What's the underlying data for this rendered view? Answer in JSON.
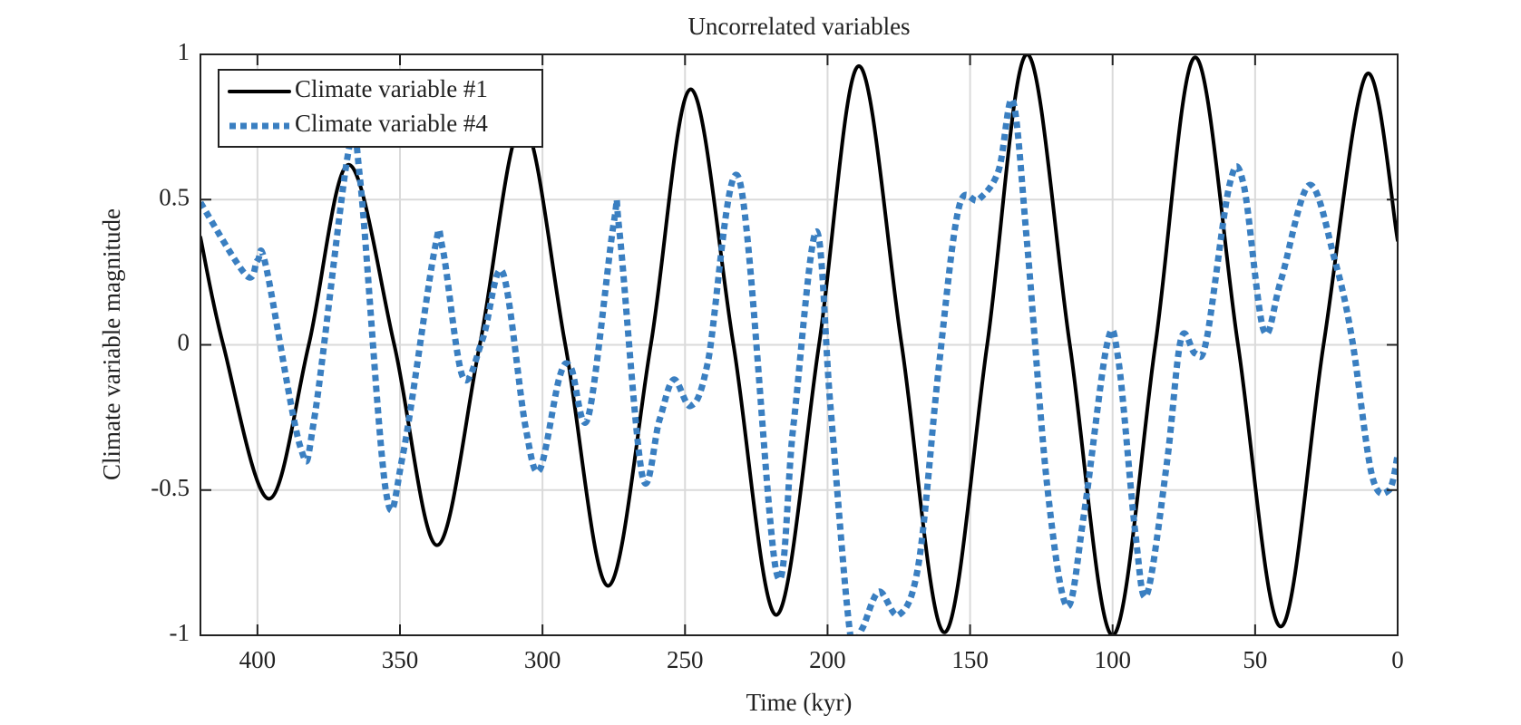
{
  "chart_data": {
    "type": "line",
    "title": "Uncorrelated variables",
    "xlabel": "Time (kyr)",
    "ylabel": "Climate variable magnitude",
    "xlim": [
      420,
      0
    ],
    "xticks": [
      400,
      350,
      300,
      250,
      200,
      150,
      100,
      50,
      0
    ],
    "ylim": [
      -1,
      1
    ],
    "yticks": [
      -1,
      -0.5,
      0,
      0.5,
      1
    ],
    "grid": true,
    "legend": "upper left",
    "series": [
      {
        "name": "Climate variable #1",
        "color": "#000000",
        "style": "solid",
        "x": [
          420,
          412,
          396,
          382,
          368,
          352,
          337,
          322,
          307,
          292,
          277,
          262,
          248,
          233,
          218,
          203,
          189,
          174,
          159,
          144,
          130,
          115,
          100,
          85,
          71,
          56,
          41,
          26,
          11,
          0
        ],
        "values": [
          0.37,
          0,
          -0.53,
          0,
          0.62,
          0,
          -0.69,
          0,
          0.76,
          0,
          -0.83,
          0,
          0.88,
          0,
          -0.93,
          0,
          0.96,
          0,
          -0.99,
          0,
          1.0,
          0,
          -1.0,
          0,
          0.99,
          0,
          -0.97,
          0,
          0.93,
          0.36
        ]
      },
      {
        "name": "Climate variable #4",
        "color": "#3a7fc1",
        "style": "dotted",
        "x": [
          420,
          404,
          400,
          397,
          385,
          380,
          368,
          364,
          355,
          349,
          338,
          335,
          328,
          321,
          314,
          306,
          301,
          294,
          290,
          284,
          275,
          273,
          265,
          259,
          254,
          248,
          242,
          231,
          218,
          212,
          204,
          199,
          192,
          188,
          182,
          175,
          168,
          161,
          154,
          147,
          140,
          135,
          130,
          123,
          116,
          110,
          102,
          98,
          92,
          88,
          81,
          76,
          71,
          67,
          59,
          54,
          47,
          41,
          31,
          22,
          16,
          9,
          3,
          0
        ],
        "values": [
          0.49,
          0.24,
          0.29,
          0.27,
          -0.35,
          -0.25,
          0.67,
          0.57,
          -0.5,
          -0.38,
          0.32,
          0.33,
          -0.11,
          0.02,
          0.25,
          -0.28,
          -0.43,
          -0.11,
          -0.08,
          -0.25,
          0.42,
          0.39,
          -0.45,
          -0.26,
          -0.12,
          -0.21,
          -0.06,
          0.57,
          -0.78,
          -0.28,
          0.39,
          -0.21,
          -1.0,
          -0.98,
          -0.85,
          -0.93,
          -0.75,
          -0.08,
          0.47,
          0.5,
          0.6,
          0.84,
          0.35,
          -0.48,
          -0.9,
          -0.58,
          0.0,
          -0.05,
          -0.65,
          -0.86,
          -0.41,
          0.02,
          -0.03,
          0.02,
          0.55,
          0.55,
          0.05,
          0.22,
          0.55,
          0.29,
          0.02,
          -0.45,
          -0.5,
          -0.38
        ]
      }
    ]
  }
}
